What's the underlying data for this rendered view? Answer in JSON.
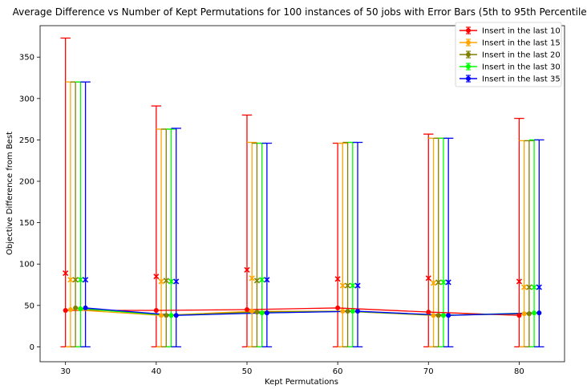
{
  "chart_data": {
    "type": "line",
    "title": "Average Difference vs Number of Kept Permutations for 100 instances of 50 jobs with Error Bars (5th to 95th Percentile)",
    "xlabel": "Kept Permutations",
    "ylabel": "Objective Difference from Best",
    "x": [
      30,
      40,
      50,
      60,
      70,
      80
    ],
    "x_ticks": [
      "30",
      "40",
      "50",
      "60",
      "70",
      "80"
    ],
    "y_ticks": [
      "0",
      "50",
      "100",
      "150",
      "200",
      "250",
      "300",
      "350"
    ],
    "xlim": [
      27.2,
      85
    ],
    "ylim": [
      -18,
      388
    ],
    "grid": false,
    "legend_position": "top-right",
    "series": [
      {
        "name": "Insert in the last 10",
        "color": "#ff0000",
        "mean": [
          44,
          44,
          45,
          47,
          42,
          38
        ],
        "upper_x_marker": [
          89,
          85,
          93,
          82,
          83,
          79
        ],
        "err_low": [
          0,
          0,
          0,
          0,
          0,
          0
        ],
        "err_high": [
          373,
          291,
          280,
          246,
          257,
          276
        ]
      },
      {
        "name": "Insert in the last 15",
        "color": "#ffa500",
        "mean": [
          45,
          38,
          43,
          43,
          38,
          40
        ],
        "upper_x_marker": [
          81,
          79,
          83,
          74,
          77,
          72
        ],
        "err_low": [
          0,
          0,
          0,
          0,
          0,
          0
        ],
        "err_high": [
          320,
          263,
          247,
          246,
          252,
          249
        ]
      },
      {
        "name": "Insert in the last 20",
        "color": "#808000",
        "mean": [
          47,
          38,
          42,
          43,
          38,
          40
        ],
        "upper_x_marker": [
          81,
          80,
          80,
          74,
          78,
          72
        ],
        "err_low": [
          0,
          0,
          0,
          0,
          0,
          0
        ],
        "err_high": [
          320,
          263,
          246,
          247,
          252,
          249
        ]
      },
      {
        "name": "Insert in the last 30",
        "color": "#00ff00",
        "mean": [
          46,
          38,
          41,
          43,
          38,
          41
        ],
        "upper_x_marker": [
          81,
          79,
          81,
          74,
          78,
          72
        ],
        "err_low": [
          0,
          0,
          0,
          0,
          0,
          0
        ],
        "err_high": [
          320,
          263,
          246,
          247,
          252,
          250
        ]
      },
      {
        "name": "Insert in the last 35",
        "color": "#0000ff",
        "mean": [
          47,
          38,
          41,
          43,
          38,
          41
        ],
        "upper_x_marker": [
          81,
          79,
          81,
          74,
          78,
          72
        ],
        "err_low": [
          0,
          0,
          0,
          0,
          0,
          0
        ],
        "err_high": [
          320,
          264,
          246,
          247,
          252,
          250
        ]
      }
    ]
  }
}
